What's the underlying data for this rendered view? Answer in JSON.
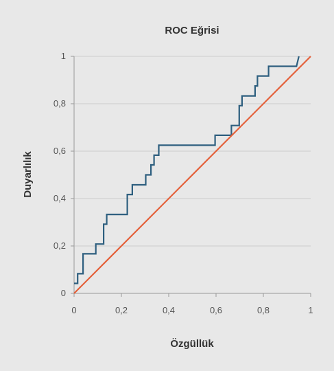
{
  "chart_data": {
    "type": "line",
    "title": "ROC Eğrisi",
    "xlabel": "Özgüllük",
    "ylabel": "Duyarlılık",
    "xlim": [
      0,
      1
    ],
    "ylim": [
      0,
      1
    ],
    "x_ticks": [
      "0",
      "0,2",
      "0,4",
      "0,6",
      "0,8",
      "1"
    ],
    "y_ticks": [
      "0",
      "0,2",
      "0,4",
      "0,6",
      "0,8",
      "1"
    ],
    "grid": "horizontal",
    "legend": "none",
    "series": [
      {
        "style": "step",
        "color": "#2e5f7f",
        "points": [
          [
            0,
            0.042
          ],
          [
            0.015,
            0.042
          ],
          [
            0.015,
            0.083
          ],
          [
            0.038,
            0.083
          ],
          [
            0.038,
            0.167
          ],
          [
            0.092,
            0.167
          ],
          [
            0.092,
            0.208
          ],
          [
            0.125,
            0.208
          ],
          [
            0.125,
            0.292
          ],
          [
            0.138,
            0.292
          ],
          [
            0.138,
            0.333
          ],
          [
            0.225,
            0.333
          ],
          [
            0.225,
            0.417
          ],
          [
            0.246,
            0.417
          ],
          [
            0.246,
            0.458
          ],
          [
            0.303,
            0.458
          ],
          [
            0.303,
            0.5
          ],
          [
            0.325,
            0.5
          ],
          [
            0.325,
            0.542
          ],
          [
            0.338,
            0.542
          ],
          [
            0.338,
            0.583
          ],
          [
            0.358,
            0.583
          ],
          [
            0.358,
            0.625
          ],
          [
            0.596,
            0.625
          ],
          [
            0.596,
            0.667
          ],
          [
            0.665,
            0.667
          ],
          [
            0.665,
            0.708
          ],
          [
            0.698,
            0.708
          ],
          [
            0.698,
            0.792
          ],
          [
            0.71,
            0.792
          ],
          [
            0.71,
            0.833
          ],
          [
            0.765,
            0.833
          ],
          [
            0.765,
            0.875
          ],
          [
            0.775,
            0.875
          ],
          [
            0.775,
            0.917
          ],
          [
            0.822,
            0.917
          ],
          [
            0.822,
            0.958
          ],
          [
            0.94,
            0.958
          ],
          [
            0.95,
            1.0
          ]
        ]
      },
      {
        "style": "line",
        "color": "#e4603a",
        "points": [
          [
            0,
            0
          ],
          [
            1,
            1
          ]
        ]
      }
    ]
  }
}
